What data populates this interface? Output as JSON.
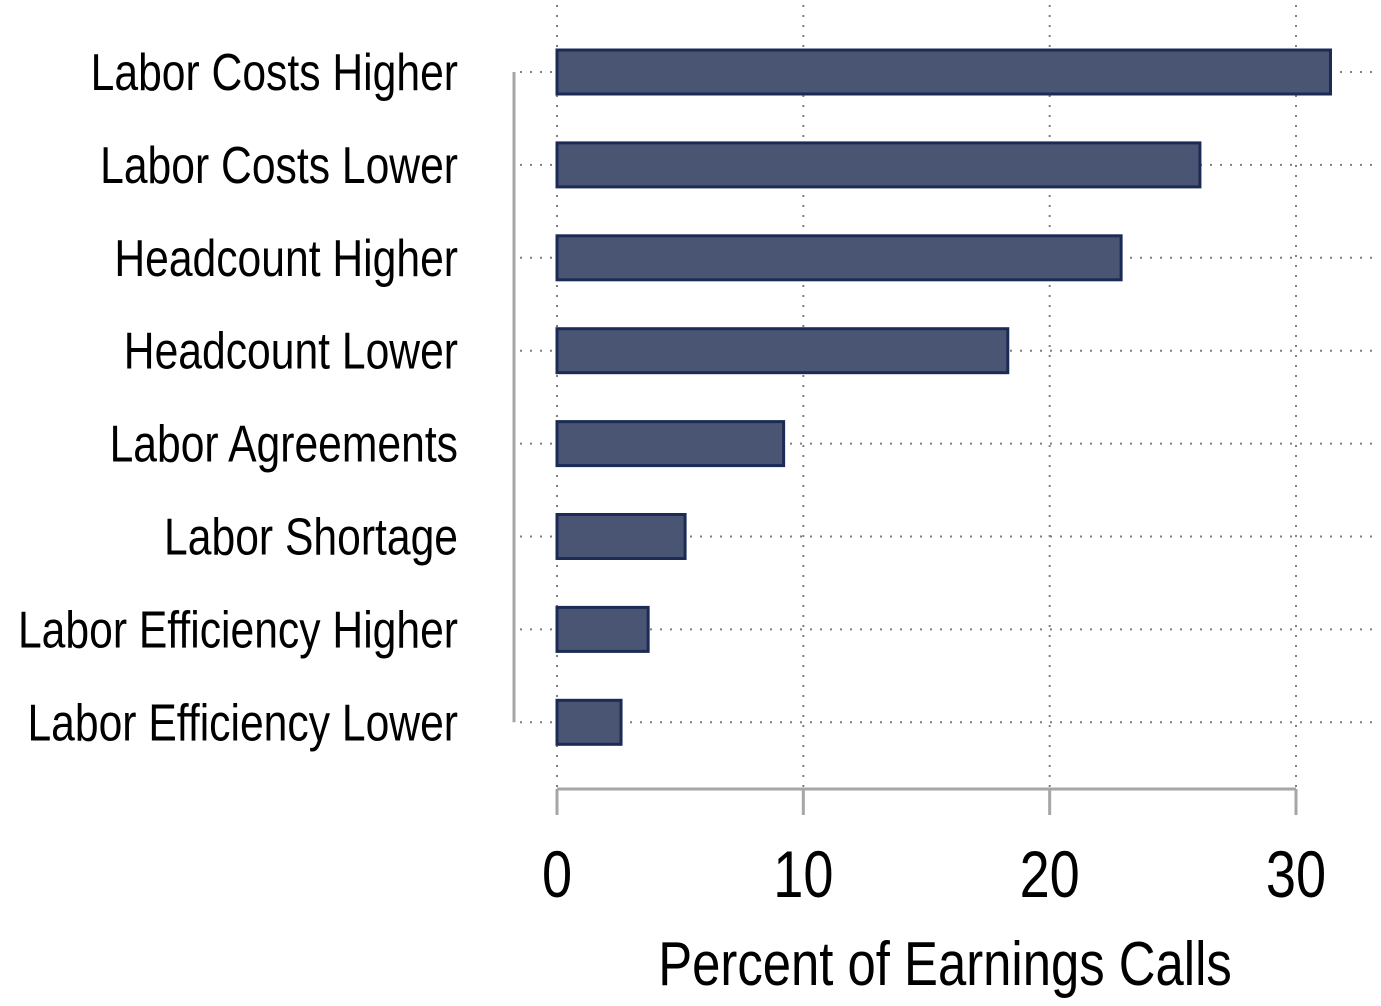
{
  "chart_data": {
    "type": "bar",
    "orientation": "horizontal",
    "categories": [
      "Labor Costs Higher",
      "Labor Costs Lower",
      "Headcount Higher",
      "Headcount Lower",
      "Labor Agreements",
      "Labor Shortage",
      "Labor Efficiency Higher",
      "Labor Efficiency Lower"
    ],
    "values": [
      31.4,
      26.1,
      22.9,
      18.3,
      9.2,
      5.2,
      3.7,
      2.6
    ],
    "title": "",
    "xlabel": "Percent of Earnings Calls",
    "ylabel": "",
    "xlim": [
      0,
      30
    ],
    "xticks": [
      "0",
      "10",
      "20",
      "30"
    ],
    "grid": true,
    "colors": {
      "bar_fill": "#4a5574",
      "bar_stroke": "#1c2b55",
      "axis": "#a6a6a6",
      "grid": "#7f7f7f"
    }
  }
}
